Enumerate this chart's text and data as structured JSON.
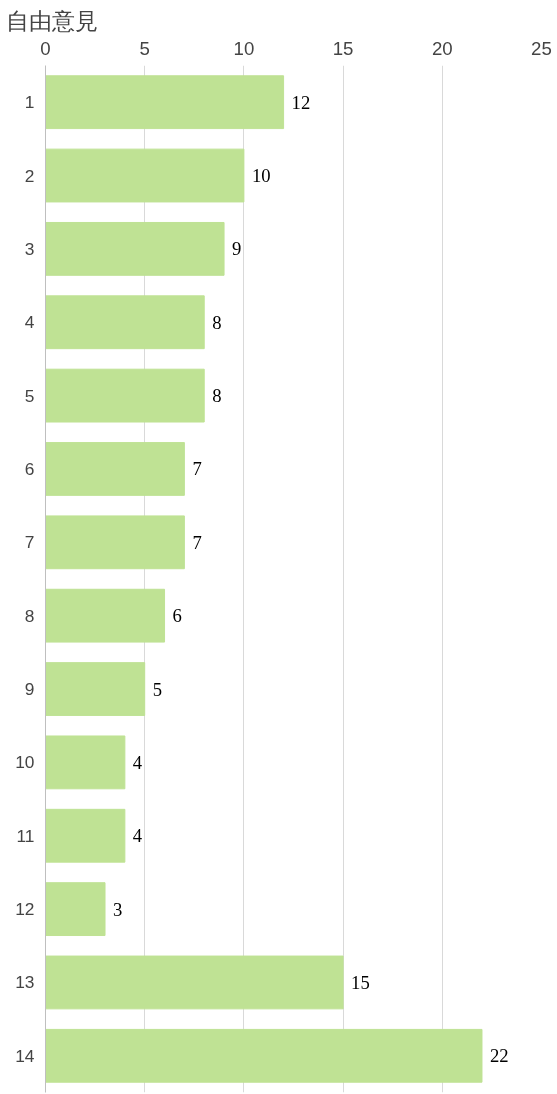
{
  "chart_data": {
    "type": "bar",
    "orientation": "horizontal",
    "title": "自由意見",
    "categories": [
      "1",
      "2",
      "3",
      "4",
      "5",
      "6",
      "7",
      "8",
      "9",
      "10",
      "11",
      "12",
      "13",
      "14"
    ],
    "values": [
      12,
      10,
      9,
      8,
      8,
      7,
      7,
      6,
      5,
      4,
      4,
      3,
      15,
      22
    ],
    "color": "#bfe294",
    "xlim": [
      0,
      25
    ],
    "xticks": [
      0,
      5,
      10,
      15,
      20,
      25
    ],
    "grid": "x",
    "data_labels": true
  }
}
